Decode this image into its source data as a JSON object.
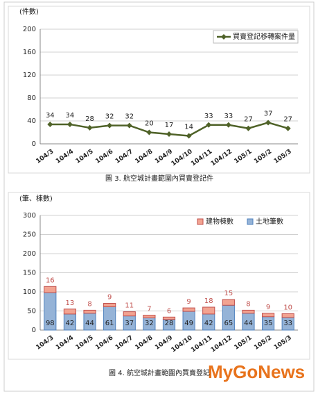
{
  "chart_data": [
    {
      "type": "line",
      "y_label": "(件數)",
      "caption": "圖 3. 航空城計畫範圍內買賣登記件",
      "categories": [
        "104/3",
        "104/4",
        "104/5",
        "104/6",
        "104/7",
        "104/8",
        "104/9",
        "104/10",
        "104/11",
        "104/12",
        "105/1",
        "105/2",
        "105/3"
      ],
      "series": [
        {
          "name": "買賣登記移轉案件量",
          "color": "#4f6228",
          "values": [
            34,
            34,
            28,
            32,
            32,
            20,
            17,
            14,
            33,
            33,
            27,
            37,
            27
          ]
        }
      ],
      "ylim": [
        0,
        200
      ],
      "yticks": [
        0,
        40,
        80,
        120,
        160,
        200
      ],
      "grid": true
    },
    {
      "type": "bar",
      "y_label": "(筆、棟數)",
      "caption": "圖 4. 航空城計畫範圍內買賣登記",
      "categories": [
        "104/3",
        "104/4",
        "104/5",
        "104/6",
        "104/7",
        "104/8",
        "104/9",
        "104/10",
        "104/11",
        "104/12",
        "105/1",
        "105/2",
        "105/3"
      ],
      "series": [
        {
          "name": "土地筆數",
          "color": "#95b3d7",
          "values": [
            98,
            42,
            44,
            61,
            37,
            32,
            28,
            49,
            42,
            65,
            44,
            35,
            33
          ]
        },
        {
          "name": "建物棟數",
          "color": "#f2a391",
          "values": [
            16,
            13,
            8,
            9,
            11,
            7,
            6,
            9,
            18,
            15,
            8,
            9,
            10
          ]
        }
      ],
      "ylim": [
        0,
        300
      ],
      "yticks": [
        0,
        50,
        100,
        150,
        200,
        250,
        300
      ],
      "grid": true
    }
  ],
  "watermark": "MyGoNews"
}
